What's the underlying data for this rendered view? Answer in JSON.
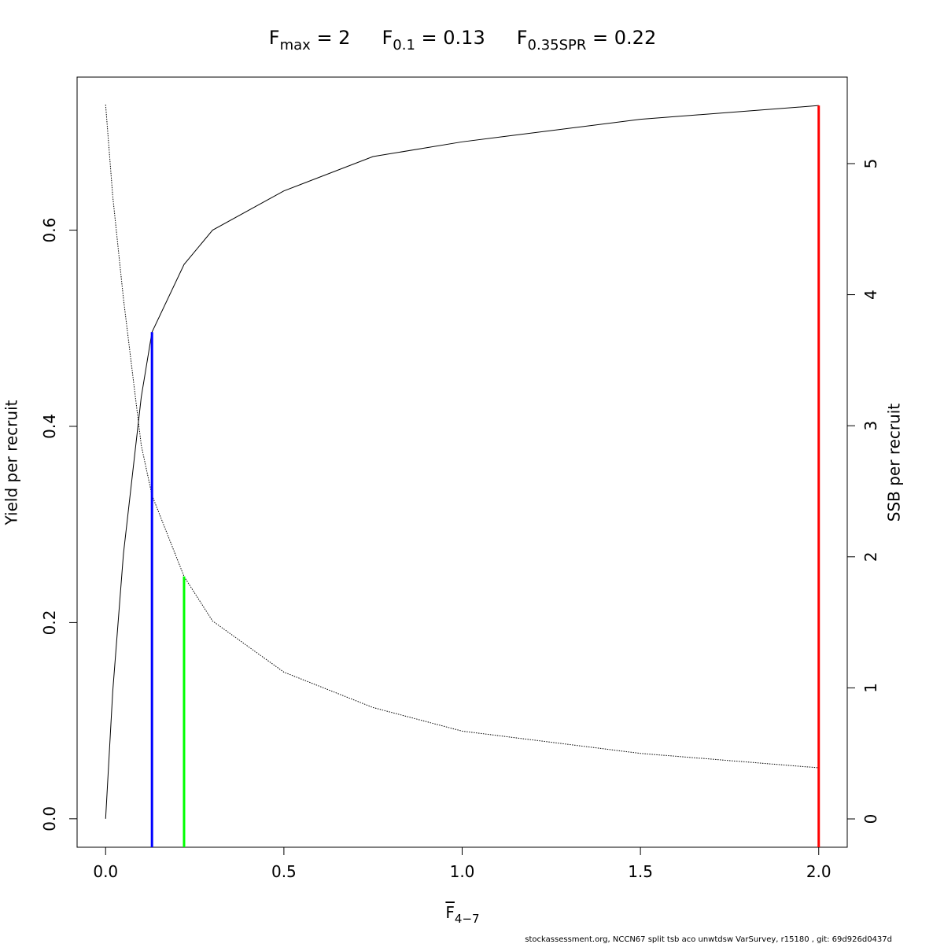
{
  "chart_data": {
    "type": "line",
    "title_parts": [
      {
        "base": "F",
        "sub": "max",
        "rest": " = 2"
      },
      {
        "base": "F",
        "sub": "0.1",
        "rest": " = 0.13"
      },
      {
        "base": "F",
        "sub": "0.35SPR",
        "rest": " = 0.22"
      }
    ],
    "xlabel": {
      "base": "F",
      "sub": "4−7"
    },
    "ylabel": "Yield per recruit",
    "y2label": "SSB per recruit",
    "x": [
      0,
      0.02,
      0.05,
      0.1,
      0.13,
      0.22,
      0.3,
      0.5,
      0.75,
      1.0,
      1.5,
      2.0
    ],
    "series": [
      {
        "color": "#000000",
        "dash": "none",
        "values": [
          0,
          0.13,
          0.27,
          0.43,
          0.496,
          0.565,
          0.6,
          0.64,
          0.675,
          0.69,
          0.713,
          0.727
        ]
      },
      {
        "color": "#000000",
        "dash": "1.5,1.5",
        "axis": "y2",
        "values": [
          5.45,
          4.75,
          3.97,
          2.85,
          2.47,
          1.85,
          1.51,
          1.12,
          0.85,
          0.67,
          0.5,
          0.39
        ]
      }
    ],
    "reference_lines": [
      {
        "x": 0.13,
        "y": 0.496,
        "color": "#0000ff"
      },
      {
        "x": 0.22,
        "y": 1.85,
        "axis": "y2",
        "color": "#00ff00"
      },
      {
        "x": 2.0,
        "y": 0.727,
        "color": "#ff0000"
      }
    ],
    "xlim": [
      -0.08,
      2.08
    ],
    "ylim": [
      -0.029,
      0.756
    ],
    "y2lim": [
      -0.216,
      5.66
    ],
    "xticks": [
      {
        "value": 0,
        "label": "0.0"
      },
      0.5,
      {
        "value": 1,
        "label": "1.0"
      },
      1.5,
      {
        "value": 2,
        "label": "2.0"
      }
    ],
    "yticks": [
      {
        "value": 0,
        "label": "0.0"
      },
      0.2,
      0.4,
      0.6
    ],
    "y2ticks": [
      0,
      1,
      2,
      3,
      4,
      5
    ],
    "footer": "stockassessment.org, NCCN67 split tsb aco unwtdsw VarSurvey, r15180 , git: 69d926d0437d"
  }
}
